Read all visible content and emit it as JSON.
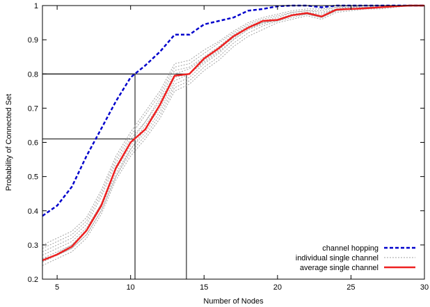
{
  "chart_data": {
    "type": "line",
    "title": "",
    "xlabel": "Number of Nodes",
    "ylabel": "Probability of Connected Set",
    "xlim": [
      4,
      30
    ],
    "ylim": [
      0.2,
      1.0
    ],
    "xticks": [
      5,
      10,
      15,
      20,
      25,
      30
    ],
    "yticks": [
      0.2,
      0.3,
      0.4,
      0.5,
      0.6,
      0.7,
      0.8,
      0.9,
      1.0
    ],
    "ytick_labels": [
      "0.2",
      "0.3",
      "0.4",
      "0.5",
      "0.6",
      "0.7",
      "0.8",
      "0.9",
      "1"
    ],
    "grid": false,
    "legend_position": "bottom-right",
    "x": [
      4,
      5,
      6,
      7,
      8,
      9,
      10,
      11,
      12,
      13,
      14,
      15,
      16,
      17,
      18,
      19,
      20,
      21,
      22,
      23,
      24,
      25,
      26,
      27,
      28,
      29,
      30
    ],
    "series": [
      {
        "name": "channel hopping",
        "color": "#0000cc",
        "style": "dashed",
        "values": [
          0.385,
          0.415,
          0.47,
          0.56,
          0.64,
          0.72,
          0.79,
          0.825,
          0.865,
          0.915,
          0.915,
          0.945,
          0.955,
          0.965,
          0.985,
          0.99,
          0.998,
          1.0,
          1.0,
          0.995,
          1.0,
          1.0,
          1.0,
          1.0,
          1.0,
          1.0,
          1.0
        ]
      },
      {
        "name": "individual single channel",
        "color": "#a0a0a0",
        "style": "dotted",
        "runs": [
          [
            0.24,
            0.26,
            0.28,
            0.32,
            0.39,
            0.49,
            0.56,
            0.61,
            0.67,
            0.75,
            0.77,
            0.81,
            0.84,
            0.88,
            0.91,
            0.93,
            0.95,
            0.96,
            0.97,
            0.96,
            0.98,
            0.985,
            0.99,
            0.99,
            0.995,
            1.0,
            1.0
          ],
          [
            0.25,
            0.27,
            0.29,
            0.33,
            0.4,
            0.5,
            0.57,
            0.62,
            0.68,
            0.76,
            0.78,
            0.82,
            0.85,
            0.89,
            0.92,
            0.94,
            0.955,
            0.965,
            0.975,
            0.965,
            0.985,
            0.99,
            0.99,
            0.995,
            1.0,
            1.0,
            1.0
          ],
          [
            0.26,
            0.28,
            0.3,
            0.34,
            0.41,
            0.51,
            0.58,
            0.63,
            0.69,
            0.77,
            0.79,
            0.83,
            0.86,
            0.9,
            0.93,
            0.945,
            0.96,
            0.97,
            0.98,
            0.97,
            0.99,
            0.99,
            0.995,
            0.995,
            1.0,
            1.0,
            1.0
          ],
          [
            0.27,
            0.29,
            0.31,
            0.35,
            0.42,
            0.52,
            0.59,
            0.65,
            0.71,
            0.79,
            0.8,
            0.84,
            0.87,
            0.91,
            0.935,
            0.95,
            0.96,
            0.975,
            0.98,
            0.975,
            0.99,
            0.995,
            0.995,
            1.0,
            1.0,
            1.0,
            1.0
          ],
          [
            0.28,
            0.3,
            0.32,
            0.36,
            0.44,
            0.54,
            0.61,
            0.66,
            0.73,
            0.81,
            0.82,
            0.85,
            0.88,
            0.915,
            0.94,
            0.955,
            0.965,
            0.98,
            0.985,
            0.98,
            0.99,
            0.995,
            1.0,
            1.0,
            1.0,
            1.0,
            1.0
          ],
          [
            0.29,
            0.31,
            0.33,
            0.37,
            0.45,
            0.55,
            0.62,
            0.68,
            0.74,
            0.82,
            0.83,
            0.86,
            0.89,
            0.92,
            0.945,
            0.96,
            0.97,
            0.98,
            0.985,
            0.985,
            0.995,
            0.995,
            1.0,
            1.0,
            1.0,
            1.0,
            1.0
          ],
          [
            0.3,
            0.32,
            0.34,
            0.38,
            0.46,
            0.56,
            0.63,
            0.69,
            0.75,
            0.83,
            0.84,
            0.87,
            0.895,
            0.925,
            0.95,
            0.965,
            0.975,
            0.985,
            0.99,
            0.99,
            0.995,
            1.0,
            1.0,
            1.0,
            1.0,
            1.0,
            1.0
          ],
          [
            0.26,
            0.27,
            0.29,
            0.33,
            0.4,
            0.5,
            0.58,
            0.64,
            0.7,
            0.78,
            0.8,
            0.835,
            0.865,
            0.9,
            0.93,
            0.95,
            0.96,
            0.97,
            0.975,
            0.97,
            0.985,
            0.99,
            0.995,
            0.995,
            1.0,
            1.0,
            1.0
          ],
          [
            0.25,
            0.275,
            0.3,
            0.345,
            0.42,
            0.53,
            0.6,
            0.66,
            0.72,
            0.8,
            0.815,
            0.845,
            0.875,
            0.905,
            0.935,
            0.95,
            0.955,
            0.97,
            0.975,
            0.965,
            0.985,
            0.99,
            0.99,
            0.995,
            1.0,
            1.0,
            1.0
          ]
        ]
      },
      {
        "name": "average single channel",
        "color": "#ee2020",
        "style": "solid",
        "values": [
          0.255,
          0.272,
          0.295,
          0.342,
          0.415,
          0.525,
          0.6,
          0.638,
          0.71,
          0.795,
          0.8,
          0.845,
          0.875,
          0.91,
          0.935,
          0.955,
          0.958,
          0.972,
          0.978,
          0.968,
          0.988,
          0.99,
          0.992,
          0.995,
          0.998,
          1.0,
          1.0
        ]
      }
    ],
    "reference_lines": [
      {
        "x": 10.3,
        "y": 0.8
      },
      {
        "x": 10.3,
        "y": 0.61
      },
      {
        "x": 13.8,
        "y": 0.8
      }
    ]
  }
}
